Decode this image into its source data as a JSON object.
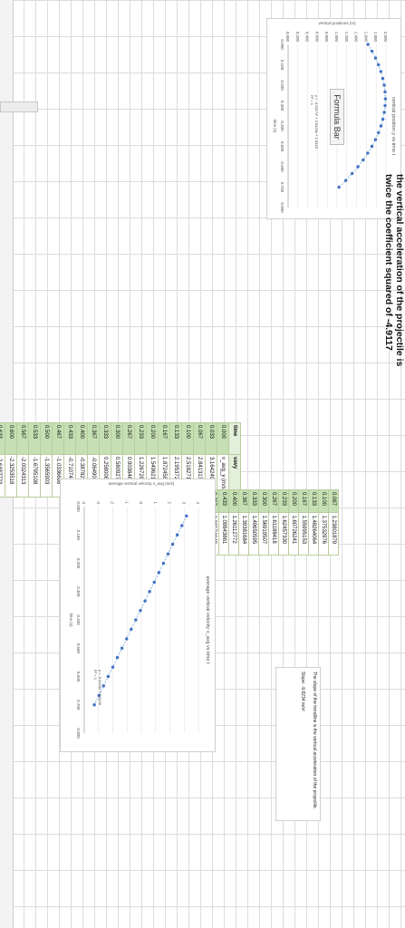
{
  "formula_bar": {
    "label": "Formula Bar"
  },
  "chart_top": {
    "title": "vertical position y vs time t",
    "ylabel": "vertical positions (m)",
    "xlabel": "time (s)",
    "equation": "y = -4.9117x² + 2.6424x + 1.6316",
    "r2": "R² = 1"
  },
  "note_top": {
    "line1": "the vertical acceleration of the projectile is",
    "line2": "twice the coefficient squared of -4.9117"
  },
  "table_main": {
    "header": [
      "time",
      "vavy"
    ],
    "subheader": [
      "0.000",
      "v_avg_y (m/s)"
    ],
    "rows": [
      [
        "0.033",
        "3.164249432"
      ],
      [
        "0.067",
        "2.841313725"
      ],
      [
        "0.100",
        "2.5182712"
      ],
      [
        "0.133",
        "2.195372726"
      ],
      [
        "0.167",
        "1.87245802"
      ],
      [
        "0.200",
        "1.54962136"
      ],
      [
        "0.233",
        "1.22672886"
      ],
      [
        "0.267",
        "0.90384684"
      ],
      [
        "0.300",
        "0.58092767"
      ],
      [
        "0.333",
        "0.25800812"
      ],
      [
        "0.367",
        "-0.0649082"
      ],
      [
        "0.400",
        "-0.3878288"
      ],
      [
        "0.433",
        "-0.7107493"
      ],
      [
        "0.467",
        "-1.0336698"
      ],
      [
        "0.500",
        "-1.3565903"
      ],
      [
        "0.533",
        "-1.6795108"
      ],
      [
        "0.567",
        "-2.0024313"
      ],
      [
        "0.600",
        "-2.3253518"
      ],
      [
        "0.633",
        "-2.6482723"
      ],
      [
        "0.667",
        "-2.9711928"
      ],
      [
        "0.700",
        "-3.2941133"
      ]
    ]
  },
  "table_second": {
    "rows": [
      [
        "0.067",
        "1.23801879"
      ],
      [
        "0.100",
        "1.37532976"
      ],
      [
        "0.133",
        "1.48264064"
      ],
      [
        "0.167",
        "1.55995153"
      ],
      [
        "0.200",
        "1.60726241"
      ],
      [
        "0.233",
        "1.62457330"
      ],
      [
        "0.267",
        "1.61188418"
      ],
      [
        "0.300",
        "1.56919507"
      ],
      [
        "0.333",
        "1.49650595"
      ],
      [
        "0.367",
        "1.39381684"
      ],
      [
        "0.400",
        "1.26112772"
      ],
      [
        "0.433",
        "1.09843861"
      ],
      [
        "0.467",
        "0.90574949"
      ],
      [
        "0.500",
        "0.68306038"
      ],
      [
        "0.533",
        "0.43037126"
      ],
      [
        "0.567",
        "0.14768215"
      ],
      [
        "0.600",
        "-0.1650070"
      ],
      [
        "0.633",
        "-0.5076961"
      ],
      [
        "0.667",
        "-0.8803852"
      ]
    ]
  },
  "chart_bottom": {
    "title": "average vertical velocity v_avg vs time t",
    "ylabel": "average vertical velocity v_avg (m/s)",
    "xlabel": "time (s)",
    "equation": "y = -9.8234x + 2.6436",
    "r2": "R² = 1"
  },
  "note_slope": {
    "text": "The slope of the trendline is the vertical acceleration of the projectile.",
    "value": "Slope: -9.8234 m/s²"
  },
  "chart_data": [
    {
      "type": "scatter",
      "title": "vertical position y vs time t",
      "xlabel": "time (s)",
      "ylabel": "vertical positions (m)",
      "xlim": [
        0,
        0.8
      ],
      "ylim": [
        0,
        2.0
      ],
      "xticks": [
        "0.000",
        "0.100",
        "0.200",
        "0.300",
        "0.400",
        "0.500",
        "0.600",
        "0.700",
        "0.800"
      ],
      "yticks": [
        "0.000",
        "0.200",
        "0.400",
        "0.600",
        "0.800",
        "1.000",
        "1.200",
        "1.400",
        "1.600",
        "1.800",
        "2.000"
      ],
      "trendline": "polynomial",
      "x": [
        0.0,
        0.033,
        0.067,
        0.1,
        0.133,
        0.167,
        0.2,
        0.233,
        0.267,
        0.3,
        0.333,
        0.367,
        0.4,
        0.433,
        0.467,
        0.5,
        0.533,
        0.567,
        0.6,
        0.633,
        0.667,
        0.7
      ],
      "y": [
        1.632,
        1.714,
        1.787,
        1.847,
        1.895,
        1.935,
        1.964,
        1.981,
        1.988,
        1.982,
        1.965,
        1.937,
        1.898,
        1.847,
        1.786,
        1.713,
        1.628,
        1.533,
        1.427,
        1.309,
        1.18,
        1.04
      ]
    },
    {
      "type": "scatter",
      "title": "average vertical velocity v_avg vs time t",
      "xlabel": "time (s)",
      "ylabel": "average vertical velocity v_avg (m/s)",
      "xlim": [
        0,
        0.8
      ],
      "ylim": [
        -4,
        4
      ],
      "xticks": [
        "0.000",
        "0.100",
        "0.200",
        "0.300",
        "0.400",
        "0.500",
        "0.600",
        "0.700",
        "0.800"
      ],
      "yticks": [
        "-4",
        "-3",
        "-2",
        "-1",
        "0",
        "1",
        "2",
        "3",
        "4"
      ],
      "trendline": "linear",
      "x": [
        0.033,
        0.067,
        0.1,
        0.133,
        0.167,
        0.2,
        0.233,
        0.267,
        0.3,
        0.333,
        0.367,
        0.4,
        0.433,
        0.467,
        0.5,
        0.533,
        0.567,
        0.6,
        0.633,
        0.667,
        0.7
      ],
      "y": [
        3.164,
        2.841,
        2.518,
        2.195,
        1.872,
        1.55,
        1.227,
        0.904,
        0.581,
        0.258,
        -0.065,
        -0.388,
        -0.711,
        -1.034,
        -1.357,
        -1.68,
        -2.002,
        -2.325,
        -2.648,
        -2.971,
        -3.294
      ]
    }
  ]
}
